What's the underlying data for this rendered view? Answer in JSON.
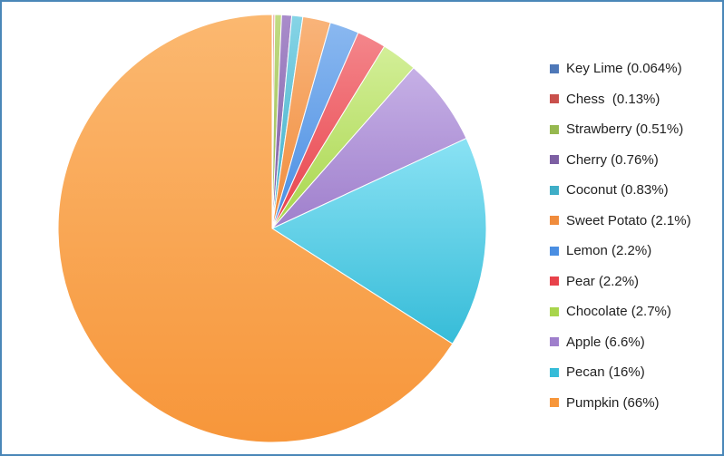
{
  "chart_data": {
    "type": "pie",
    "legend": "right",
    "slices": [
      {
        "label": "Key Lime (0.064%)",
        "name": "Key Lime",
        "value": 0.064,
        "color": "#4e78b8",
        "light": "#7ea3d8"
      },
      {
        "label": "Chess  (0.13%)",
        "name": "Chess",
        "value": 0.13,
        "color": "#c9504c",
        "light": "#e88884"
      },
      {
        "label": "Strawberry (0.51%)",
        "name": "Strawberry",
        "value": 0.51,
        "color": "#96b84f",
        "light": "#c2dc84"
      },
      {
        "label": "Cherry (0.76%)",
        "name": "Cherry",
        "value": 0.76,
        "color": "#7d5fa3",
        "light": "#a98ccb"
      },
      {
        "label": "Coconut (0.83%)",
        "name": "Coconut",
        "value": 0.83,
        "color": "#3faec7",
        "light": "#86d4e6"
      },
      {
        "label": "Sweet Potato (2.1%)",
        "name": "Sweet Potato",
        "value": 2.1,
        "color": "#f08c3c",
        "light": "#f9b47a"
      },
      {
        "label": "Lemon (2.2%)",
        "name": "Lemon",
        "value": 2.2,
        "color": "#4a8ee2",
        "light": "#8ab8f0"
      },
      {
        "label": "Pear (2.2%)",
        "name": "Pear",
        "value": 2.2,
        "color": "#e8424b",
        "light": "#f4868b"
      },
      {
        "label": "Chocolate (2.7%)",
        "name": "Chocolate",
        "value": 2.7,
        "color": "#a8d54c",
        "light": "#d3ef98"
      },
      {
        "label": "Apple (6.6%)",
        "name": "Apple",
        "value": 6.6,
        "color": "#9f7fcc",
        "light": "#c6b0e6"
      },
      {
        "label": "Pecan (16%)",
        "name": "Pecan",
        "value": 16,
        "color": "#36bcd8",
        "light": "#8ae2f4"
      },
      {
        "label": "Pumpkin (66%)",
        "name": "Pumpkin",
        "value": 66,
        "color": "#f7963a",
        "light": "#fbb870"
      }
    ]
  }
}
